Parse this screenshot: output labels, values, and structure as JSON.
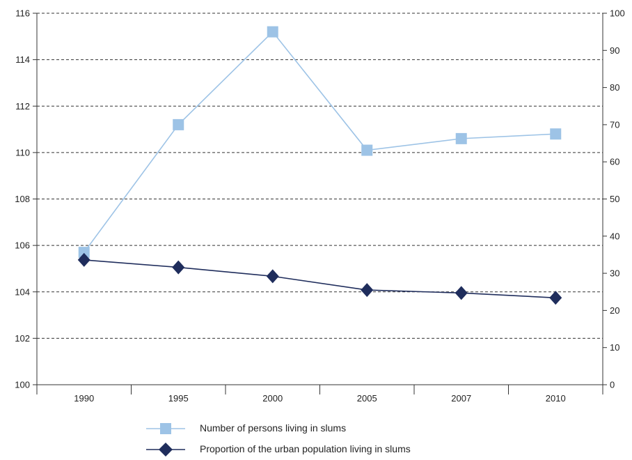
{
  "chart_data": {
    "type": "line",
    "categories": [
      "1990",
      "1995",
      "2000",
      "2005",
      "2007",
      "2010"
    ],
    "series": [
      {
        "name": "Number of persons living in slums",
        "axis": "left",
        "marker": "square",
        "color": "#9dc3e6",
        "values": [
          105.7,
          111.2,
          115.2,
          110.1,
          110.6,
          110.8
        ]
      },
      {
        "name": "Proportion of the urban population living in slums",
        "axis": "right",
        "marker": "diamond",
        "color": "#1f2d5c",
        "values": [
          33.6,
          31.6,
          29.2,
          25.5,
          24.7,
          23.4
        ]
      }
    ],
    "y_left": {
      "min": 100,
      "max": 116,
      "ticks": [
        "100",
        "102",
        "104",
        "106",
        "108",
        "110",
        "112",
        "114",
        "116"
      ]
    },
    "y_right": {
      "min": 0,
      "max": 100,
      "ticks": [
        "0",
        "10",
        "20",
        "30",
        "40",
        "50",
        "60",
        "70",
        "80",
        "90",
        "100"
      ]
    },
    "grid": "horizontal dashed",
    "legend_position": "bottom-center"
  }
}
